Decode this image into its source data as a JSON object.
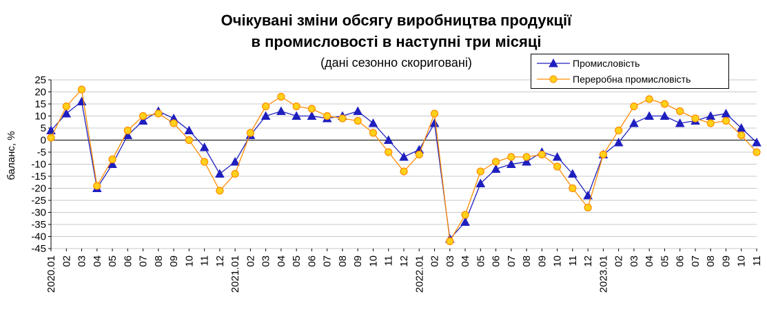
{
  "chart_data": {
    "type": "line",
    "title_line1": "Очікувані зміни обсягу виробництва продукції",
    "title_line2": "в промисловості в наступні три місяці",
    "subtitle": "(дані сезонно скориговані)",
    "xlabel": "",
    "ylabel": "баланс, %",
    "ylim": [
      -45,
      25
    ],
    "yticks": [
      25,
      20,
      15,
      10,
      5,
      0,
      -5,
      -10,
      -15,
      -20,
      -25,
      -30,
      -35,
      -40,
      -45
    ],
    "grid": true,
    "legend_position": "top-right",
    "categories": [
      "2020.01",
      "02",
      "03",
      "04",
      "05",
      "06",
      "07",
      "08",
      "09",
      "10",
      "11",
      "12",
      "2021.01",
      "02",
      "03",
      "04",
      "05",
      "06",
      "07",
      "08",
      "09",
      "10",
      "11",
      "12",
      "2022.01",
      "02",
      "03",
      "04",
      "05",
      "06",
      "07",
      "08",
      "09",
      "10",
      "11",
      "12",
      "2023.01",
      "02",
      "03",
      "04",
      "05",
      "06",
      "07",
      "08",
      "09",
      "10",
      "11"
    ],
    "series": [
      {
        "name": "Промисловість",
        "color": "#1f1fbf",
        "marker": "triangle",
        "values": [
          4,
          11,
          16,
          -20,
          -10,
          2,
          8,
          12,
          9,
          4,
          -3,
          -14,
          -9,
          2,
          10,
          12,
          10,
          10,
          9,
          10,
          12,
          7,
          0,
          -7,
          -4,
          7,
          -41,
          -34,
          -18,
          -12,
          -10,
          -9,
          -5,
          -7,
          -14,
          -23,
          -6,
          -1,
          7,
          10,
          10,
          7,
          8,
          10,
          11,
          5,
          -1
        ]
      },
      {
        "name": "Переробна промисловість",
        "color": "#ff8c00",
        "marker": "circle",
        "values": [
          1,
          14,
          21,
          -19,
          -8,
          4,
          10,
          11,
          7,
          0,
          -9,
          -21,
          -14,
          3,
          14,
          18,
          14,
          13,
          10,
          9,
          8,
          3,
          -5,
          -13,
          -6,
          11,
          -42,
          -31,
          -13,
          -9,
          -7,
          -7,
          -6,
          -11,
          -20,
          -28,
          -6,
          4,
          14,
          17,
          15,
          12,
          9,
          7,
          8,
          2,
          -5
        ]
      }
    ]
  }
}
